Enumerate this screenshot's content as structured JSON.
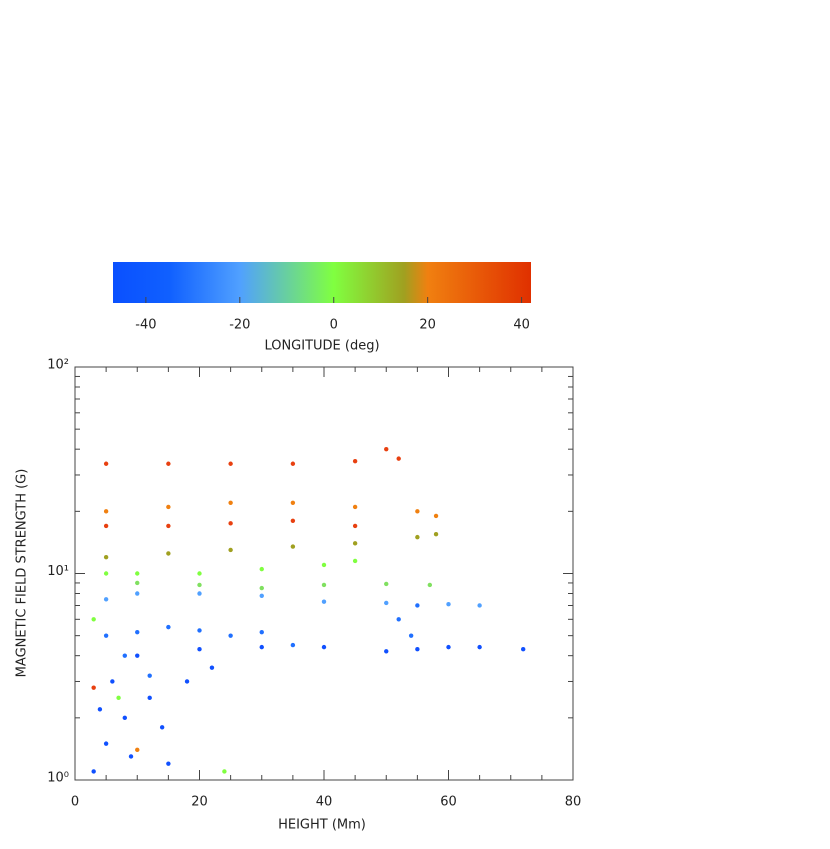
{
  "chart_data": {
    "type": "scatter",
    "xlabel": "HEIGHT (Mm)",
    "ylabel": "MAGNETIC FIELD STRENGTH (G)",
    "xlim": [
      0,
      80
    ],
    "xticks": [
      0,
      20,
      40,
      60,
      80
    ],
    "xminorticks": [
      5,
      10,
      15,
      25,
      30,
      35,
      45,
      50,
      55,
      65,
      70,
      75
    ],
    "ylim": [
      1,
      100
    ],
    "ylog": true,
    "yticks": [
      {
        "value": 1,
        "label": "10⁰"
      },
      {
        "value": 10,
        "label": "10¹"
      },
      {
        "value": 100,
        "label": "10²"
      }
    ],
    "yminorticks": [
      2,
      3,
      4,
      5,
      6,
      7,
      8,
      9,
      20,
      30,
      40,
      50,
      60,
      70,
      80,
      90
    ],
    "colorbar": {
      "label": "LONGITUDE (deg)",
      "clim": [
        -47,
        42
      ],
      "ticks": [
        -40,
        -20,
        0,
        20,
        40
      ],
      "stops": [
        {
          "value": -47,
          "color": "#0a50ff"
        },
        {
          "value": -35,
          "color": "#1060ff"
        },
        {
          "value": -20,
          "color": "#50a0ff"
        },
        {
          "value": 0,
          "color": "#80ff40"
        },
        {
          "value": 15,
          "color": "#a0a020"
        },
        {
          "value": 20,
          "color": "#f08010"
        },
        {
          "value": 42,
          "color": "#e03000"
        }
      ]
    },
    "series": [
      {
        "color": "#1050ff",
        "x": [
          10,
          20,
          30,
          40,
          50,
          55,
          60,
          65,
          72,
          5,
          8,
          12,
          15,
          18,
          22,
          3,
          6,
          4,
          9,
          14
        ],
        "y": [
          4.0,
          4.3,
          4.4,
          4.4,
          4.2,
          4.3,
          4.4,
          4.4,
          4.3,
          1.5,
          2.0,
          2.5,
          1.2,
          3.0,
          3.5,
          1.1,
          3.0,
          2.2,
          1.3,
          1.8
        ]
      },
      {
        "color": "#2070ff",
        "x": [
          5,
          10,
          15,
          20,
          25,
          30,
          35,
          52,
          54,
          55,
          8,
          12
        ],
        "y": [
          5.0,
          5.2,
          5.5,
          5.3,
          5.0,
          5.2,
          4.5,
          6.0,
          5.0,
          7.0,
          4.0,
          3.2
        ]
      },
      {
        "color": "#50a0ff",
        "x": [
          5,
          10,
          20,
          30,
          40,
          50,
          60,
          65
        ],
        "y": [
          7.5,
          8.0,
          8.0,
          7.8,
          7.3,
          7.2,
          7.1,
          7.0
        ]
      },
      {
        "color": "#80e060",
        "x": [
          10,
          20,
          30,
          40,
          50,
          57
        ],
        "y": [
          9.0,
          8.8,
          8.5,
          8.8,
          8.9,
          8.8
        ]
      },
      {
        "color": "#80ff40",
        "x": [
          5,
          10,
          20,
          30,
          40,
          45,
          24,
          3,
          7
        ],
        "y": [
          10,
          10,
          10,
          10.5,
          11,
          11.5,
          1.1,
          6.0,
          2.5
        ]
      },
      {
        "color": "#a0a020",
        "x": [
          5,
          15,
          25,
          35,
          45,
          55,
          58
        ],
        "y": [
          12,
          12.5,
          13,
          13.5,
          14,
          15,
          15.5
        ]
      },
      {
        "color": "#f08010",
        "x": [
          5,
          15,
          25,
          35,
          45,
          55,
          58,
          10
        ],
        "y": [
          20,
          21,
          22,
          22,
          21,
          20,
          19,
          1.4
        ]
      },
      {
        "color": "#e84010",
        "x": [
          5,
          15,
          25,
          35,
          45,
          5,
          15,
          25,
          35,
          45,
          52,
          50,
          3
        ],
        "y": [
          17,
          17,
          17.5,
          18,
          17,
          34,
          34,
          34,
          34,
          35,
          36,
          40,
          2.8
        ]
      }
    ]
  }
}
